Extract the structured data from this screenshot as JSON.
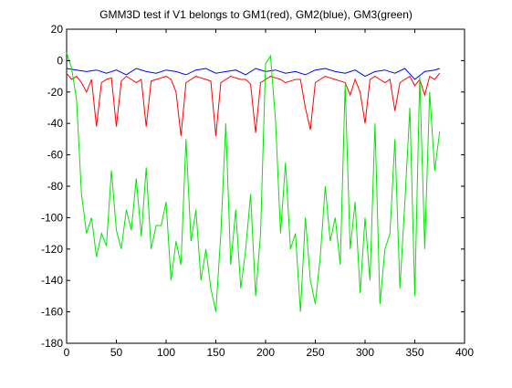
{
  "chart_data": {
    "type": "line",
    "title": "GMM3D test if V1 belongs to GM1(red), GM2(blue), GM3(green)",
    "xlabel": "",
    "ylabel": "",
    "xlim": [
      0,
      400
    ],
    "ylim": [
      -180,
      20
    ],
    "x_ticks": [
      0,
      50,
      100,
      150,
      200,
      250,
      300,
      350,
      400
    ],
    "y_ticks": [
      20,
      0,
      -20,
      -40,
      -60,
      -80,
      -100,
      -120,
      -140,
      -160,
      -180
    ],
    "grid": false,
    "legend": "none",
    "series": [
      {
        "color": "#ff0000",
        "x": [
          0,
          5,
          10,
          15,
          20,
          25,
          30,
          35,
          40,
          45,
          50,
          55,
          60,
          65,
          70,
          75,
          80,
          85,
          90,
          95,
          100,
          105,
          110,
          115,
          120,
          125,
          130,
          135,
          140,
          145,
          150,
          155,
          160,
          165,
          170,
          175,
          180,
          185,
          190,
          195,
          200,
          205,
          210,
          215,
          220,
          225,
          230,
          235,
          240,
          245,
          250,
          255,
          260,
          265,
          270,
          275,
          280,
          285,
          290,
          295,
          300,
          305,
          310,
          315,
          320,
          325,
          330,
          335,
          340,
          345,
          350,
          355,
          360,
          365,
          370,
          375
        ],
        "y": [
          -8,
          -12,
          -10,
          -14,
          -20,
          -12,
          -42,
          -14,
          -12,
          -11,
          -42,
          -13,
          -10,
          -12,
          -14,
          -12,
          -42,
          -13,
          -12,
          -11,
          -10,
          -12,
          -20,
          -48,
          -14,
          -12,
          -10,
          -11,
          -12,
          -13,
          -48,
          -14,
          -12,
          -10,
          -11,
          -12,
          -12,
          -15,
          -46,
          -14,
          -12,
          -10,
          -11,
          -12,
          -14,
          -13,
          -12,
          -12,
          -30,
          -44,
          -14,
          -12,
          -10,
          -11,
          -12,
          -13,
          -14,
          -22,
          -12,
          -20,
          -40,
          -12,
          -10,
          -12,
          -14,
          -12,
          -32,
          -14,
          -12,
          -10,
          -16,
          -12,
          -22,
          -10,
          -12,
          -8
        ]
      },
      {
        "color": "#0000ff",
        "x": [
          0,
          10,
          20,
          30,
          40,
          50,
          60,
          70,
          80,
          90,
          100,
          110,
          120,
          130,
          140,
          150,
          160,
          170,
          180,
          190,
          200,
          210,
          220,
          230,
          240,
          250,
          260,
          270,
          280,
          290,
          300,
          310,
          320,
          330,
          340,
          350,
          360,
          370,
          375
        ],
        "y": [
          -5,
          -6,
          -7,
          -6,
          -8,
          -6,
          -9,
          -5,
          -7,
          -8,
          -6,
          -7,
          -9,
          -6,
          -5,
          -8,
          -7,
          -6,
          -9,
          -5,
          -7,
          -6,
          -8,
          -7,
          -9,
          -6,
          -5,
          -7,
          -8,
          -6,
          -10,
          -7,
          -6,
          -8,
          -5,
          -12,
          -7,
          -6,
          -5
        ]
      },
      {
        "color": "#00e600",
        "x": [
          0,
          5,
          10,
          15,
          20,
          25,
          30,
          35,
          40,
          45,
          50,
          55,
          60,
          65,
          70,
          75,
          80,
          85,
          90,
          95,
          100,
          105,
          110,
          115,
          120,
          125,
          130,
          135,
          140,
          145,
          150,
          155,
          160,
          165,
          170,
          175,
          180,
          185,
          190,
          195,
          200,
          205,
          210,
          215,
          220,
          225,
          230,
          235,
          240,
          245,
          250,
          255,
          260,
          265,
          270,
          275,
          280,
          285,
          290,
          295,
          300,
          305,
          310,
          315,
          320,
          325,
          330,
          335,
          340,
          345,
          350,
          355,
          360,
          365,
          370,
          375
        ],
        "y": [
          5,
          -5,
          -25,
          -85,
          -110,
          -100,
          -125,
          -110,
          -118,
          -70,
          -108,
          -120,
          -95,
          -108,
          -75,
          -112,
          -68,
          -120,
          -105,
          -105,
          -90,
          -140,
          -115,
          -130,
          -50,
          -115,
          -95,
          -140,
          -120,
          -145,
          -160,
          -110,
          -40,
          -130,
          -95,
          -145,
          -120,
          -85,
          -150,
          -110,
          -2,
          3,
          -38,
          -110,
          -65,
          -120,
          -110,
          -160,
          -100,
          -140,
          -155,
          -125,
          -80,
          -115,
          -100,
          -130,
          -15,
          -120,
          -90,
          -148,
          -100,
          -140,
          -40,
          -155,
          -120,
          -110,
          -50,
          -145,
          -90,
          -30,
          -150,
          -10,
          -120,
          -20,
          -70,
          -45
        ]
      }
    ]
  }
}
